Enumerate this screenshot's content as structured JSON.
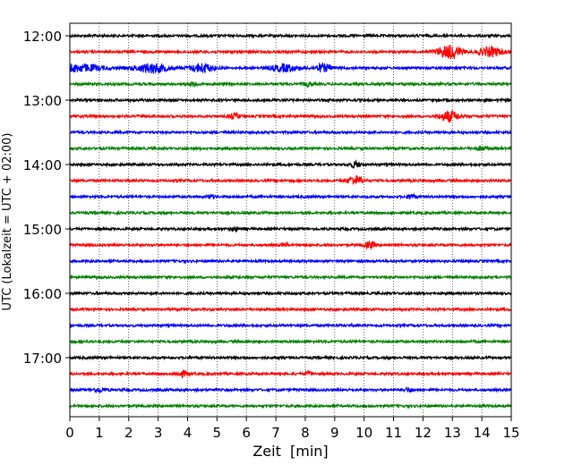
{
  "chart_data": {
    "type": "line",
    "title": "",
    "xlabel": "Zeit  [min]",
    "ylabel": "UTC (Lokalzeit = UTC + 02:00)",
    "xlim": [
      0,
      15
    ],
    "x_ticks": [
      0,
      1,
      2,
      3,
      4,
      5,
      6,
      7,
      8,
      9,
      10,
      11,
      12,
      13,
      14,
      15
    ],
    "y_tick_labels": [
      "12:00",
      "13:00",
      "14:00",
      "15:00",
      "16:00",
      "17:00"
    ],
    "grid": "vertical dotted",
    "legend": "none",
    "trace_start": "12:00",
    "trace_interval_minutes": 15,
    "trace_count": 24,
    "color_cycle": [
      "#000000",
      "#ff0000",
      "#0000ff",
      "#008000"
    ],
    "events": [
      {
        "trace": 1,
        "minute": 13.0,
        "amplitude": 7,
        "duration": 0.5
      },
      {
        "trace": 1,
        "minute": 14.3,
        "amplitude": 5,
        "duration": 0.6
      },
      {
        "trace": 1,
        "minute": 12.6,
        "amplitude": 3,
        "duration": 0.4
      },
      {
        "trace": 2,
        "minute": 0.3,
        "amplitude": 4,
        "duration": 1.3
      },
      {
        "trace": 2,
        "minute": 2.8,
        "amplitude": 5,
        "duration": 0.9
      },
      {
        "trace": 2,
        "minute": 4.5,
        "amplitude": 5,
        "duration": 0.6
      },
      {
        "trace": 2,
        "minute": 7.3,
        "amplitude": 4,
        "duration": 0.7
      },
      {
        "trace": 2,
        "minute": 8.6,
        "amplitude": 4,
        "duration": 0.5
      },
      {
        "trace": 3,
        "minute": 4.2,
        "amplitude": 2,
        "duration": 0.3
      },
      {
        "trace": 3,
        "minute": 8.1,
        "amplitude": 2,
        "duration": 0.3
      },
      {
        "trace": 5,
        "minute": 5.6,
        "amplitude": 3,
        "duration": 0.3
      },
      {
        "trace": 5,
        "minute": 12.9,
        "amplitude": 6,
        "duration": 0.5
      },
      {
        "trace": 7,
        "minute": 14.0,
        "amplitude": 2,
        "duration": 0.3
      },
      {
        "trace": 8,
        "minute": 9.7,
        "amplitude": 3,
        "duration": 0.3
      },
      {
        "trace": 9,
        "minute": 9.7,
        "amplitude": 5,
        "duration": 0.4
      },
      {
        "trace": 10,
        "minute": 4.8,
        "amplitude": 2,
        "duration": 0.2
      },
      {
        "trace": 10,
        "minute": 11.6,
        "amplitude": 3,
        "duration": 0.2
      },
      {
        "trace": 12,
        "minute": 5.6,
        "amplitude": 2,
        "duration": 0.2
      },
      {
        "trace": 13,
        "minute": 10.2,
        "amplitude": 3,
        "duration": 0.3
      },
      {
        "trace": 13,
        "minute": 7.3,
        "amplitude": 2,
        "duration": 0.2
      },
      {
        "trace": 21,
        "minute": 3.8,
        "amplitude": 3,
        "duration": 0.3
      },
      {
        "trace": 21,
        "minute": 8.1,
        "amplitude": 2,
        "duration": 0.2
      },
      {
        "trace": 22,
        "minute": 1.0,
        "amplitude": 2,
        "duration": 0.4
      },
      {
        "trace": 22,
        "minute": 11.5,
        "amplitude": 2,
        "duration": 0.3
      }
    ]
  }
}
